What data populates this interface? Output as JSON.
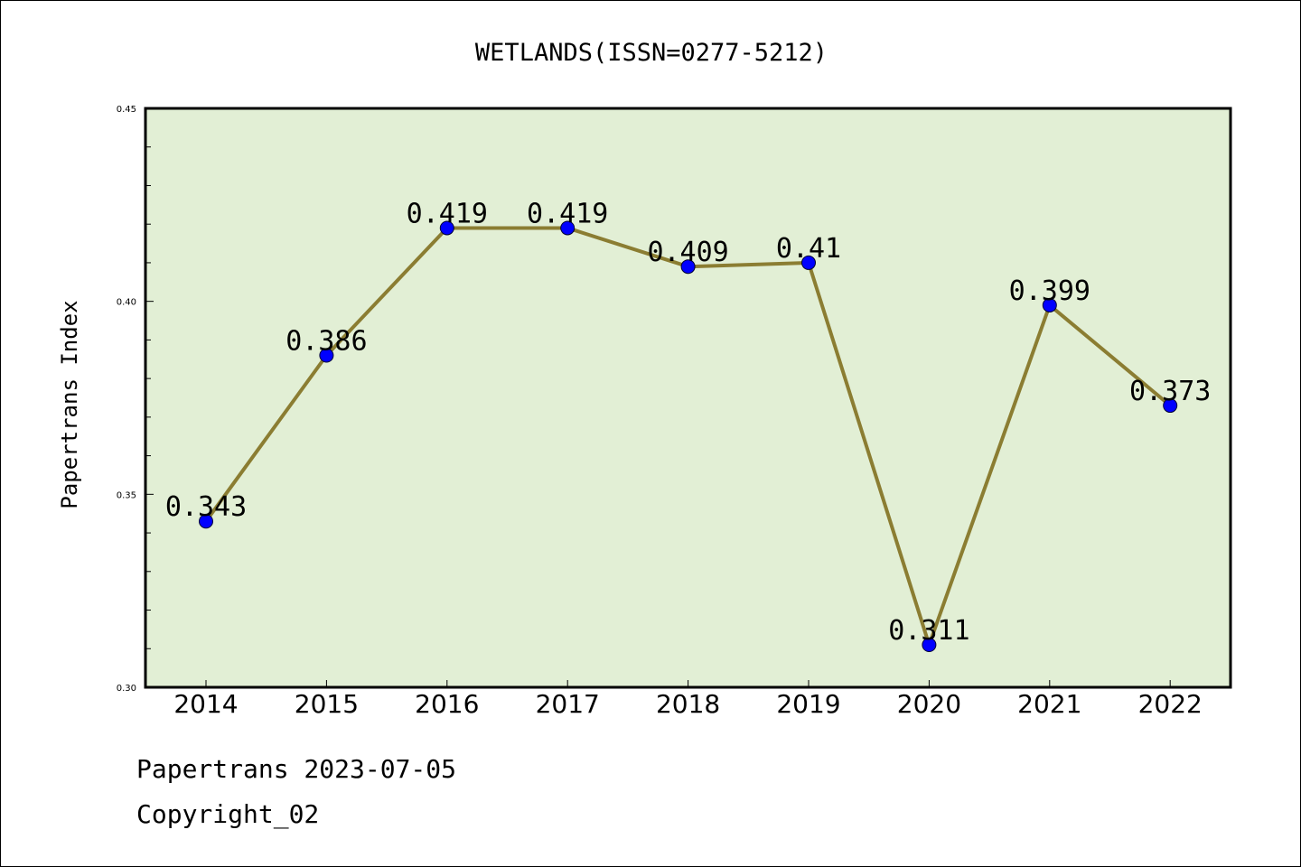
{
  "chart_data": {
    "type": "line",
    "title": "WETLANDS(ISSN=0277-5212)",
    "xlabel": "",
    "ylabel": "Papertrans Index",
    "categories": [
      "2014",
      "2015",
      "2016",
      "2017",
      "2018",
      "2019",
      "2020",
      "2021",
      "2022"
    ],
    "values": [
      0.343,
      0.386,
      0.419,
      0.419,
      0.409,
      0.41,
      0.311,
      0.399,
      0.373
    ],
    "data_labels": [
      "0.343",
      "0.386",
      "0.419",
      "0.419",
      "0.409",
      "0.41",
      "0.311",
      "0.399",
      "0.373"
    ],
    "ylim": [
      0.3,
      0.45
    ],
    "yticks": [
      "0.30",
      "0.35",
      "0.40",
      "0.45"
    ],
    "grid": false,
    "colors": {
      "plot_background": "#e2efd5",
      "line": "#8b7d32",
      "marker": "#0000ff"
    }
  },
  "footer": {
    "line1": "Papertrans 2023-07-05",
    "line2": "Copyright_02"
  }
}
